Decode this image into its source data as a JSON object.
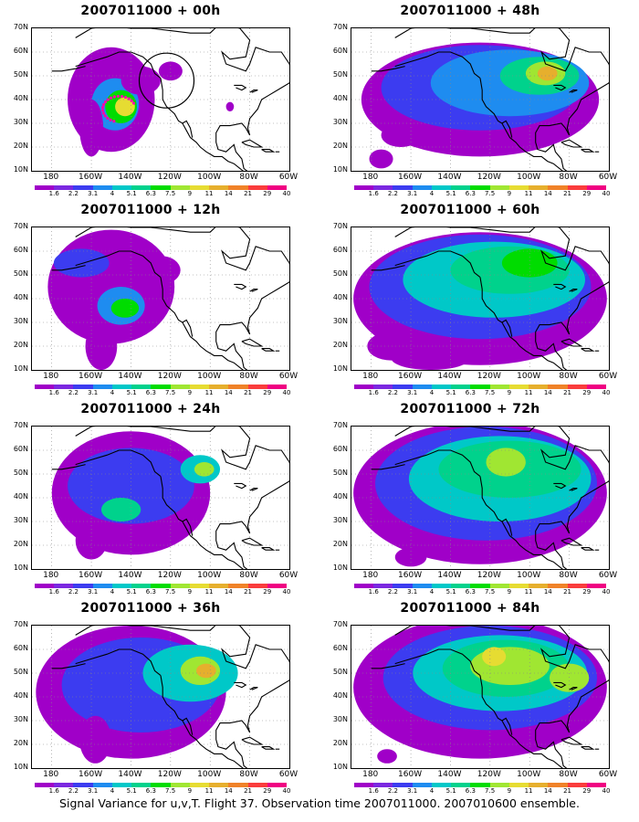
{
  "figure": {
    "caption": "Signal Variance for u,v,T. Flight 37. Observation time 2007011000. 2007010600 ensemble.",
    "lat_labels": [
      "70N",
      "60N",
      "50N",
      "40N",
      "30N",
      "20N",
      "10N"
    ],
    "lon_labels": [
      "180",
      "160W",
      "140W",
      "120W",
      "100W",
      "80W",
      "60W"
    ],
    "colorbar": {
      "labels": [
        "1.6",
        "2.2",
        "3.1",
        "4",
        "5.1",
        "6.3",
        "7.5",
        "9",
        "11",
        "14",
        "21",
        "29",
        "40"
      ],
      "colors": [
        "#a000c8",
        "#7b28e0",
        "#3c3cf0",
        "#1e8cf0",
        "#00c8c8",
        "#00d28c",
        "#00dc00",
        "#a0e632",
        "#e6dc32",
        "#e6af2d",
        "#f08228",
        "#fa3c3c",
        "#f00082"
      ]
    },
    "marker_color": "#ff00aa",
    "panels": [
      {
        "title": "2007011000 + 00h",
        "forecast_hour": 0
      },
      {
        "title": "2007011000 + 48h",
        "forecast_hour": 48
      },
      {
        "title": "2007011000 + 12h",
        "forecast_hour": 12
      },
      {
        "title": "2007011000 + 60h",
        "forecast_hour": 60
      },
      {
        "title": "2007011000 + 24h",
        "forecast_hour": 24
      },
      {
        "title": "2007011000 + 72h",
        "forecast_hour": 72
      },
      {
        "title": "2007011000 + 36h",
        "forecast_hour": 36
      },
      {
        "title": "2007011000 + 84h",
        "forecast_hour": 84
      }
    ]
  }
}
